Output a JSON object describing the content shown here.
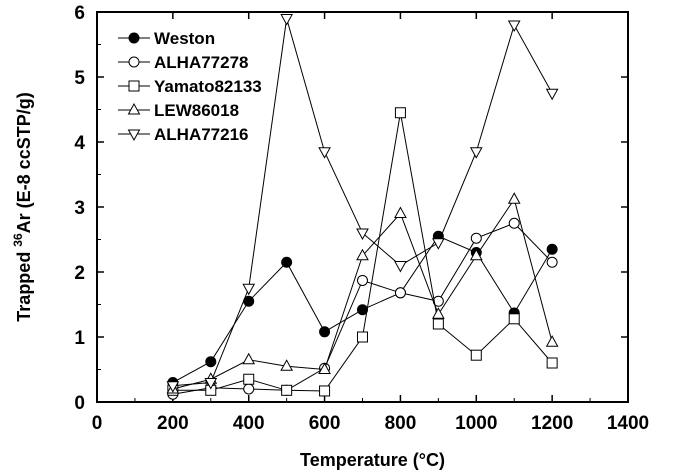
{
  "chart_data": {
    "type": "line",
    "xlabel": "Temperature (°C)",
    "ylabel_parts": {
      "pre": "Trapped ",
      "sup": "36",
      "post": "Ar (E-8 ccSTP/g)"
    },
    "xlim": [
      0,
      1400
    ],
    "ylim": [
      0,
      6
    ],
    "x_ticks": [
      0,
      200,
      400,
      600,
      800,
      1000,
      1200,
      1400
    ],
    "y_ticks": [
      0,
      1,
      2,
      3,
      4,
      5,
      6
    ],
    "grid": false,
    "legend_position": "top-left",
    "series": [
      {
        "name": "Weston",
        "marker": "filled-circle",
        "x": [
          200,
          300,
          400,
          500,
          600,
          700,
          800,
          900,
          1000,
          1100,
          1200
        ],
        "y": [
          0.3,
          0.62,
          1.55,
          2.15,
          1.08,
          1.42,
          1.68,
          2.55,
          2.3,
          1.37,
          2.35
        ]
      },
      {
        "name": "ALHA77278",
        "marker": "open-circle",
        "x": [
          200,
          300,
          400,
          500,
          600,
          700,
          800,
          900,
          1000,
          1100,
          1200
        ],
        "y": [
          0.12,
          0.22,
          0.2,
          0.18,
          0.52,
          1.87,
          1.68,
          1.55,
          2.52,
          2.75,
          2.15
        ]
      },
      {
        "name": "Yamato82133",
        "marker": "open-square",
        "x": [
          200,
          300,
          400,
          500,
          600,
          700,
          800,
          900,
          1000,
          1100,
          1200
        ],
        "y": [
          0.18,
          0.18,
          0.35,
          0.18,
          0.17,
          1.0,
          4.45,
          1.2,
          0.72,
          1.28,
          0.6
        ]
      },
      {
        "name": "LEW86018",
        "marker": "triangle-up",
        "x": [
          200,
          300,
          400,
          500,
          600,
          700,
          800,
          900,
          1000,
          1100,
          1200
        ],
        "y": [
          0.2,
          0.35,
          0.65,
          0.55,
          0.5,
          2.25,
          2.9,
          1.35,
          2.25,
          3.12,
          0.92
        ]
      },
      {
        "name": "ALHA77216",
        "marker": "triangle-down",
        "x": [
          200,
          300,
          400,
          500,
          600,
          700,
          800,
          900,
          1000,
          1100,
          1200
        ],
        "y": [
          0.25,
          0.3,
          1.75,
          5.9,
          3.85,
          2.6,
          2.1,
          2.45,
          3.85,
          5.8,
          4.75
        ]
      }
    ]
  }
}
